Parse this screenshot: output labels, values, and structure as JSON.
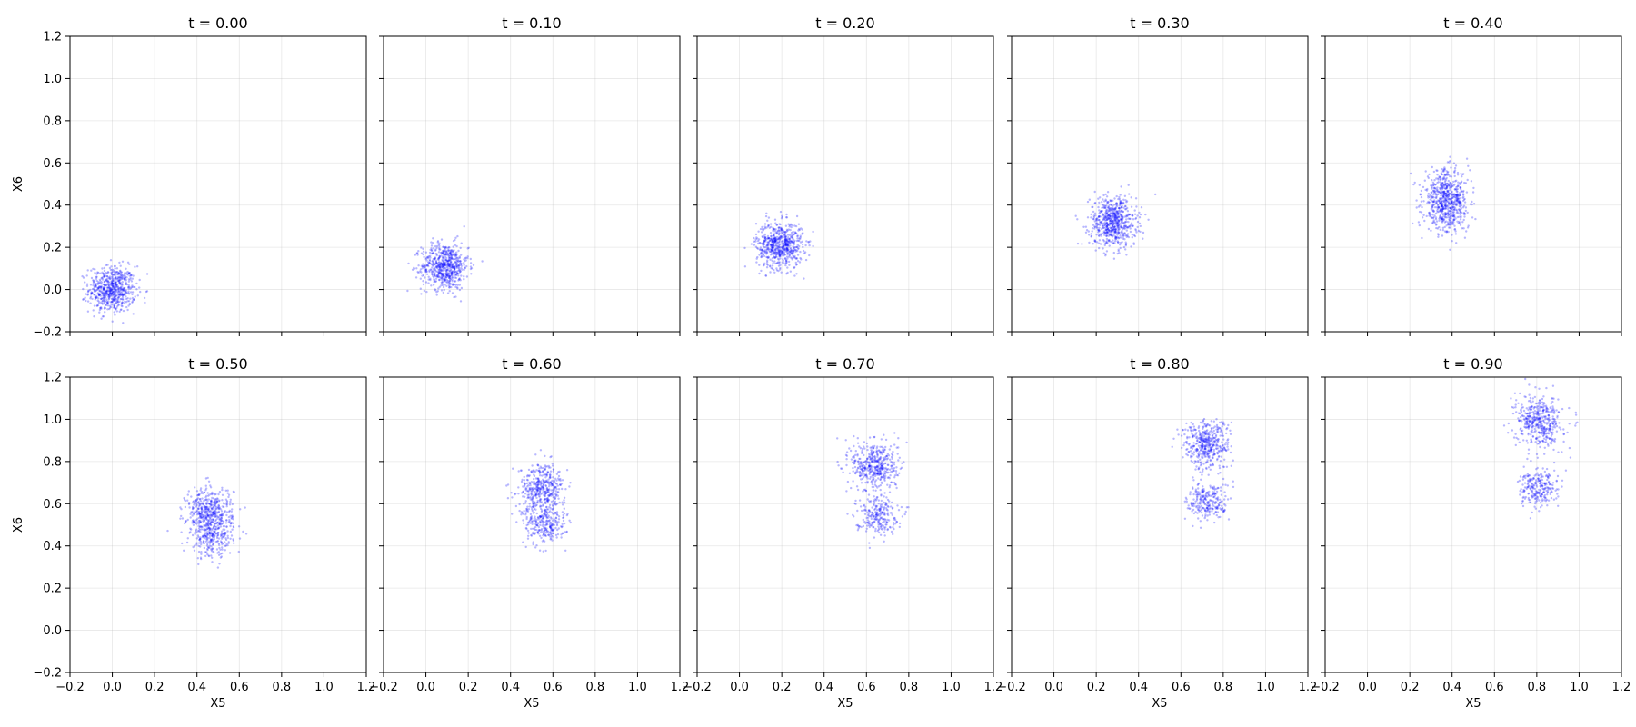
{
  "chart_data": {
    "type": "scatter",
    "layout": {
      "rows": 2,
      "cols": 5
    },
    "xlabel": "X5",
    "ylabel": "X6",
    "xlim": [
      -0.2,
      1.2
    ],
    "ylim": [
      -0.2,
      1.2
    ],
    "xticks": [
      "−0.2",
      "0.0",
      "0.2",
      "0.4",
      "0.6",
      "0.8",
      "1.0",
      "1.2"
    ],
    "yticks": [
      "−0.2",
      "0.0",
      "0.2",
      "0.4",
      "0.6",
      "0.8",
      "1.0",
      "1.2"
    ],
    "grid": true,
    "color": "#0000ff",
    "panels": [
      {
        "title": "t = 0.00",
        "clusters": [
          {
            "cx": 0.0,
            "cy": 0.0,
            "sx": 0.055,
            "sy": 0.055,
            "n": 650
          }
        ]
      },
      {
        "title": "t = 0.10",
        "clusters": [
          {
            "cx": 0.09,
            "cy": 0.11,
            "sx": 0.055,
            "sy": 0.055,
            "n": 650
          }
        ]
      },
      {
        "title": "t = 0.20",
        "clusters": [
          {
            "cx": 0.19,
            "cy": 0.21,
            "sx": 0.055,
            "sy": 0.055,
            "n": 650
          }
        ]
      },
      {
        "title": "t = 0.30",
        "clusters": [
          {
            "cx": 0.28,
            "cy": 0.32,
            "sx": 0.055,
            "sy": 0.06,
            "n": 650
          }
        ]
      },
      {
        "title": "t = 0.40",
        "clusters": [
          {
            "cx": 0.37,
            "cy": 0.45,
            "sx": 0.055,
            "sy": 0.06,
            "n": 450
          },
          {
            "cx": 0.38,
            "cy": 0.36,
            "sx": 0.05,
            "sy": 0.05,
            "n": 250
          }
        ]
      },
      {
        "title": "t = 0.50",
        "clusters": [
          {
            "cx": 0.46,
            "cy": 0.56,
            "sx": 0.055,
            "sy": 0.06,
            "n": 450
          },
          {
            "cx": 0.47,
            "cy": 0.44,
            "sx": 0.05,
            "sy": 0.05,
            "n": 250
          }
        ]
      },
      {
        "title": "t = 0.60",
        "clusters": [
          {
            "cx": 0.55,
            "cy": 0.67,
            "sx": 0.055,
            "sy": 0.06,
            "n": 450
          },
          {
            "cx": 0.56,
            "cy": 0.5,
            "sx": 0.05,
            "sy": 0.045,
            "n": 250
          }
        ]
      },
      {
        "title": "t = 0.70",
        "clusters": [
          {
            "cx": 0.64,
            "cy": 0.78,
            "sx": 0.055,
            "sy": 0.06,
            "n": 450
          },
          {
            "cx": 0.65,
            "cy": 0.55,
            "sx": 0.05,
            "sy": 0.045,
            "n": 250
          }
        ]
      },
      {
        "title": "t = 0.80",
        "clusters": [
          {
            "cx": 0.72,
            "cy": 0.88,
            "sx": 0.055,
            "sy": 0.06,
            "n": 450
          },
          {
            "cx": 0.73,
            "cy": 0.61,
            "sx": 0.05,
            "sy": 0.045,
            "n": 250
          }
        ]
      },
      {
        "title": "t = 0.90",
        "clusters": [
          {
            "cx": 0.81,
            "cy": 0.99,
            "sx": 0.055,
            "sy": 0.06,
            "n": 450
          },
          {
            "cx": 0.81,
            "cy": 0.67,
            "sx": 0.045,
            "sy": 0.045,
            "n": 250
          }
        ]
      }
    ]
  }
}
